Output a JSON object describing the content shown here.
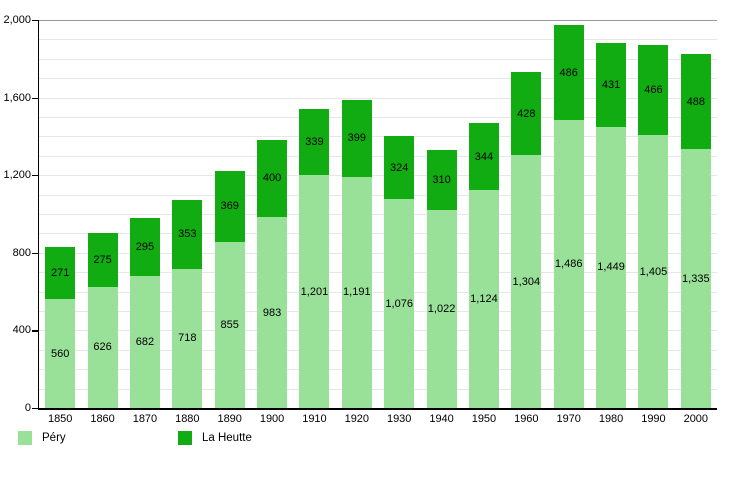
{
  "chart_data": {
    "type": "bar",
    "stacked": true,
    "title": "",
    "xlabel": "",
    "ylabel": "",
    "categories": [
      "1850",
      "1860",
      "1870",
      "1880",
      "1890",
      "1900",
      "1910",
      "1920",
      "1930",
      "1940",
      "1950",
      "1960",
      "1970",
      "1980",
      "1990",
      "2000"
    ],
    "series": [
      {
        "name": "Péry",
        "color": "#99E099",
        "values": [
          560,
          626,
          682,
          718,
          855,
          983,
          1201,
          1191,
          1076,
          1022,
          1124,
          1304,
          1486,
          1449,
          1405,
          1335
        ]
      },
      {
        "name": "La Heutte",
        "color": "#11AC11",
        "values": [
          271,
          275,
          295,
          353,
          369,
          400,
          339,
          399,
          324,
          310,
          344,
          428,
          486,
          431,
          466,
          488
        ]
      }
    ],
    "ylim": [
      0,
      2000
    ],
    "y_major_ticks": [
      0,
      400,
      800,
      1200,
      1600,
      2000
    ],
    "y_minor_step": 100,
    "grid": true,
    "value_labels": "centered-on-segments",
    "legend_position": "bottom-left"
  },
  "colors": {
    "background": "#FFFFFF",
    "grid_minor": "#E7E7E7",
    "grid_top": "#999999",
    "axis": "#000000",
    "label_text": "#000000"
  }
}
